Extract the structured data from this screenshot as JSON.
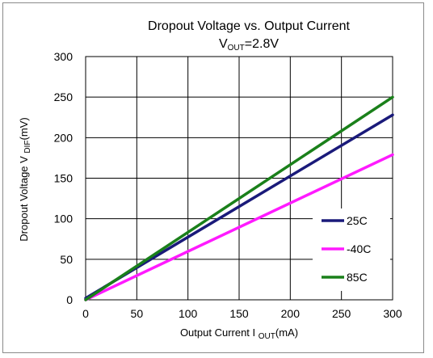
{
  "chart_data": {
    "type": "line",
    "title": "Dropout Voltage vs. Output Current",
    "subtitle": {
      "main": "V",
      "sub": "OUT",
      "rest": "=2.8V"
    },
    "xlabel": {
      "main": "Output Current I ",
      "sub": "OUT",
      "rest": "(mA)"
    },
    "ylabel": {
      "main": "Dropout Voltage V ",
      "sub": "DIF",
      "rest": "(mV)"
    },
    "xlim": [
      0,
      300
    ],
    "ylim": [
      0,
      300
    ],
    "xticks": [
      "0",
      "50",
      "100",
      "150",
      "200",
      "250",
      "300"
    ],
    "yticks": [
      "0",
      "50",
      "100",
      "150",
      "200",
      "250",
      "300"
    ],
    "grid": true,
    "legend_position": "lower-right",
    "series": [
      {
        "name": "25C",
        "color": "#1a1a7a",
        "x": [
          0,
          300
        ],
        "y": [
          2,
          228
        ]
      },
      {
        "name": "-40C",
        "color": "#ff1aff",
        "x": [
          0,
          300
        ],
        "y": [
          0,
          179
        ]
      },
      {
        "name": "85C",
        "color": "#1a801a",
        "x": [
          0,
          300
        ],
        "y": [
          0,
          250
        ]
      }
    ]
  }
}
